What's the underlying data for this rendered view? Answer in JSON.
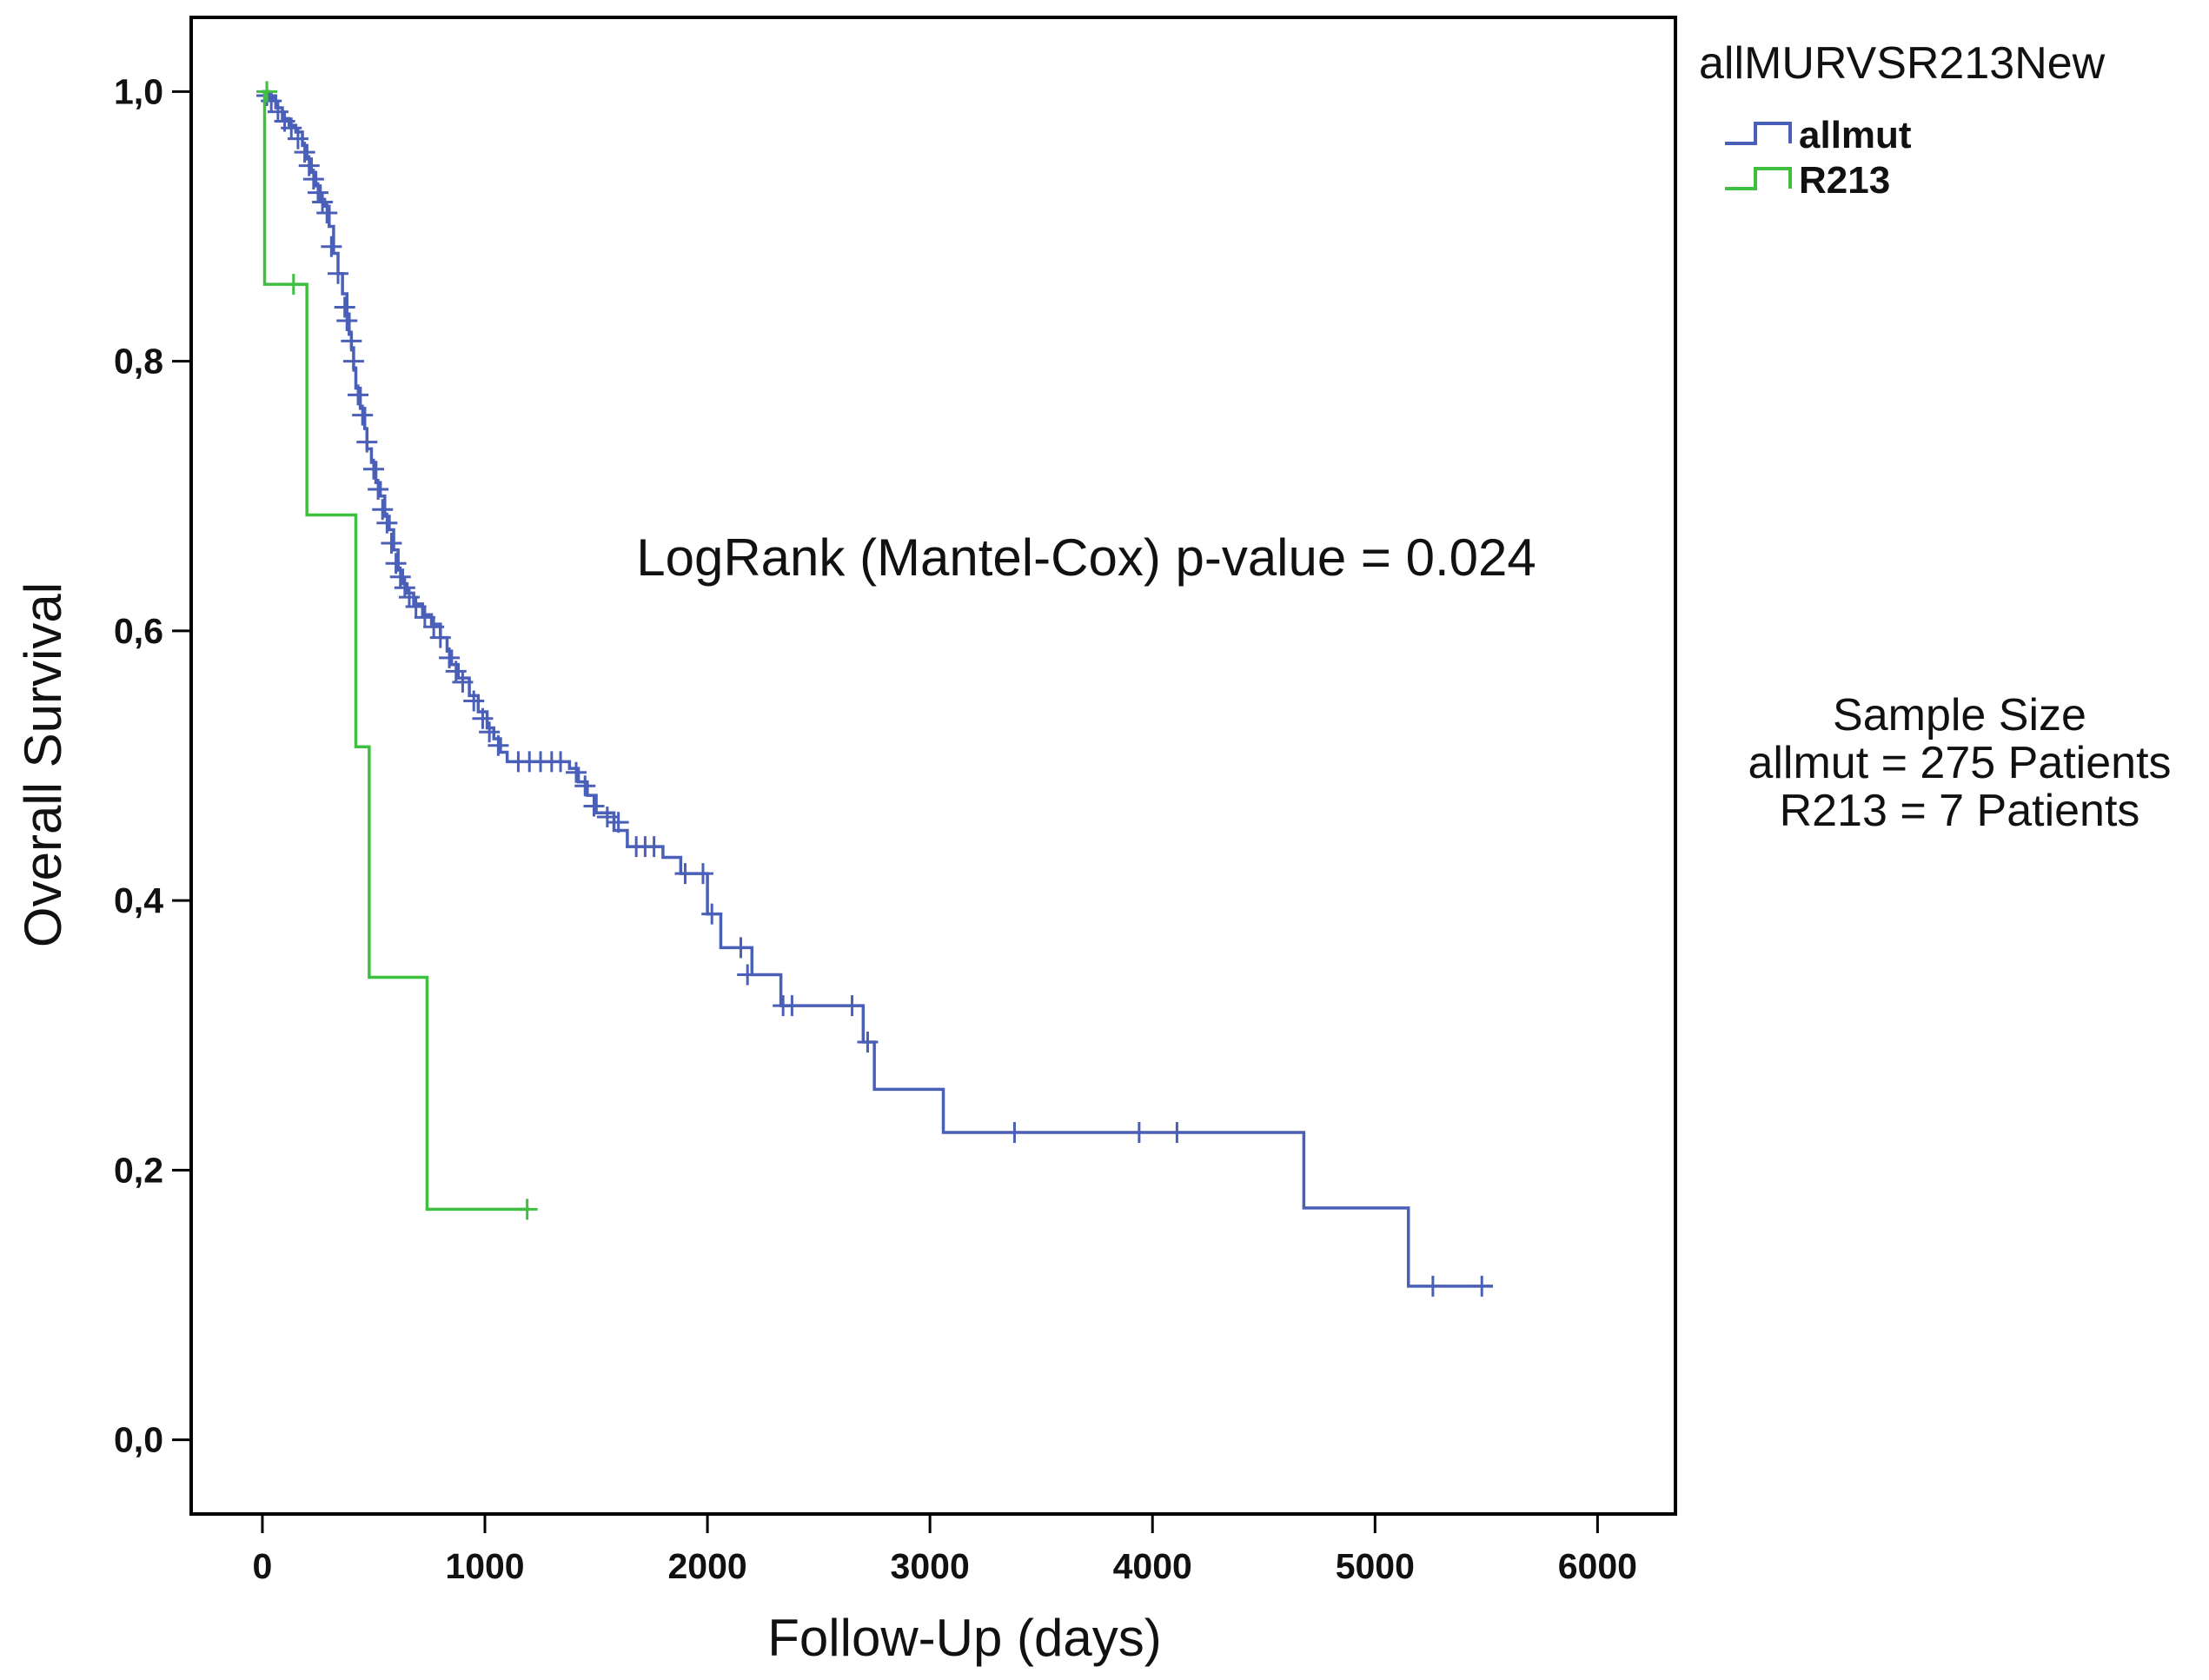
{
  "chart_data": {
    "type": "line",
    "subtype": "kaplan-meier",
    "title": "",
    "xlabel": "Follow-Up (days)",
    "ylabel": "Overall Survival",
    "xlim": [
      -320,
      6350
    ],
    "ylim": [
      -0.055,
      1.055
    ],
    "x_ticks": [
      0,
      1000,
      2000,
      3000,
      4000,
      5000,
      6000
    ],
    "x_tick_labels": [
      "0",
      "1000",
      "2000",
      "3000",
      "4000",
      "5000",
      "6000"
    ],
    "y_ticks": [
      0,
      0.2,
      0.4,
      0.6,
      0.8,
      1.0
    ],
    "y_tick_labels": [
      "0,0",
      "0,2",
      "0,4",
      "0,6",
      "0,8",
      "1,0"
    ],
    "grid": false,
    "legend": {
      "title": "allMURVSR213New",
      "placement": "outside-top-right",
      "entries": [
        {
          "label": "allmut",
          "color": "#4a5fb8"
        },
        {
          "label": "R213",
          "color": "#3fbf3f"
        }
      ]
    },
    "annotations": [
      {
        "text": "LogRank (Mantel-Cox) p-value = 0.024"
      }
    ],
    "side_note": {
      "lines": [
        "Sample Size",
        "allmut = 275 Patients",
        "R213 = 7 Patients"
      ]
    },
    "series": [
      {
        "name": "allmut",
        "color": "#4a5fb8",
        "steps": [
          [
            0,
            1.0
          ],
          [
            30,
            0.995
          ],
          [
            60,
            0.988
          ],
          [
            90,
            0.98
          ],
          [
            120,
            0.975
          ],
          [
            150,
            0.97
          ],
          [
            180,
            0.96
          ],
          [
            200,
            0.95
          ],
          [
            220,
            0.94
          ],
          [
            240,
            0.93
          ],
          [
            260,
            0.92
          ],
          [
            280,
            0.915
          ],
          [
            300,
            0.9
          ],
          [
            320,
            0.88
          ],
          [
            340,
            0.865
          ],
          [
            360,
            0.85
          ],
          [
            380,
            0.835
          ],
          [
            390,
            0.82
          ],
          [
            400,
            0.81
          ],
          [
            410,
            0.795
          ],
          [
            420,
            0.78
          ],
          [
            440,
            0.765
          ],
          [
            460,
            0.75
          ],
          [
            470,
            0.735
          ],
          [
            490,
            0.725
          ],
          [
            510,
            0.71
          ],
          [
            530,
            0.7
          ],
          [
            550,
            0.685
          ],
          [
            570,
            0.675
          ],
          [
            590,
            0.66
          ],
          [
            610,
            0.645
          ],
          [
            630,
            0.635
          ],
          [
            650,
            0.628
          ],
          [
            680,
            0.62
          ],
          [
            720,
            0.612
          ],
          [
            760,
            0.605
          ],
          [
            800,
            0.595
          ],
          [
            830,
            0.585
          ],
          [
            850,
            0.575
          ],
          [
            880,
            0.565
          ],
          [
            930,
            0.552
          ],
          [
            970,
            0.54
          ],
          [
            1010,
            0.528
          ],
          [
            1040,
            0.52
          ],
          [
            1070,
            0.51
          ],
          [
            1100,
            0.503
          ],
          [
            1380,
            0.498
          ],
          [
            1420,
            0.488
          ],
          [
            1460,
            0.478
          ],
          [
            1500,
            0.465
          ],
          [
            1580,
            0.452
          ],
          [
            1640,
            0.44
          ],
          [
            1800,
            0.432
          ],
          [
            1880,
            0.42
          ],
          [
            2000,
            0.39
          ],
          [
            2060,
            0.365
          ],
          [
            2200,
            0.345
          ],
          [
            2330,
            0.322
          ],
          [
            2700,
            0.295
          ],
          [
            2750,
            0.26
          ],
          [
            3060,
            0.228
          ],
          [
            4680,
            0.172
          ],
          [
            5150,
            0.114
          ],
          [
            5530,
            0.114
          ]
        ],
        "censored": [
          [
            20,
            0.997
          ],
          [
            40,
            0.993
          ],
          [
            70,
            0.985
          ],
          [
            100,
            0.978
          ],
          [
            130,
            0.973
          ],
          [
            160,
            0.965
          ],
          [
            190,
            0.955
          ],
          [
            210,
            0.945
          ],
          [
            230,
            0.935
          ],
          [
            250,
            0.925
          ],
          [
            270,
            0.918
          ],
          [
            290,
            0.91
          ],
          [
            310,
            0.885
          ],
          [
            340,
            0.865
          ],
          [
            370,
            0.84
          ],
          [
            380,
            0.83
          ],
          [
            400,
            0.815
          ],
          [
            410,
            0.8
          ],
          [
            430,
            0.775
          ],
          [
            450,
            0.76
          ],
          [
            470,
            0.74
          ],
          [
            500,
            0.72
          ],
          [
            520,
            0.705
          ],
          [
            540,
            0.69
          ],
          [
            560,
            0.68
          ],
          [
            580,
            0.665
          ],
          [
            600,
            0.65
          ],
          [
            620,
            0.64
          ],
          [
            640,
            0.632
          ],
          [
            660,
            0.625
          ],
          [
            690,
            0.618
          ],
          [
            730,
            0.61
          ],
          [
            770,
            0.603
          ],
          [
            800,
            0.595
          ],
          [
            840,
            0.58
          ],
          [
            870,
            0.57
          ],
          [
            900,
            0.562
          ],
          [
            950,
            0.548
          ],
          [
            990,
            0.535
          ],
          [
            1020,
            0.525
          ],
          [
            1060,
            0.515
          ],
          [
            1150,
            0.503
          ],
          [
            1200,
            0.503
          ],
          [
            1250,
            0.503
          ],
          [
            1300,
            0.503
          ],
          [
            1340,
            0.503
          ],
          [
            1410,
            0.495
          ],
          [
            1450,
            0.485
          ],
          [
            1490,
            0.47
          ],
          [
            1550,
            0.462
          ],
          [
            1600,
            0.458
          ],
          [
            1680,
            0.44
          ],
          [
            1720,
            0.44
          ],
          [
            1760,
            0.44
          ],
          [
            1900,
            0.42
          ],
          [
            1980,
            0.42
          ],
          [
            2020,
            0.39
          ],
          [
            2150,
            0.365
          ],
          [
            2180,
            0.345
          ],
          [
            2340,
            0.322
          ],
          [
            2380,
            0.322
          ],
          [
            2650,
            0.322
          ],
          [
            2720,
            0.295
          ],
          [
            3380,
            0.228
          ],
          [
            3940,
            0.228
          ],
          [
            4110,
            0.228
          ],
          [
            5260,
            0.114
          ],
          [
            5480,
            0.114
          ]
        ]
      },
      {
        "name": "R213",
        "color": "#3fbf3f",
        "steps": [
          [
            0,
            1.0
          ],
          [
            10,
            0.857
          ],
          [
            200,
            0.686
          ],
          [
            420,
            0.514
          ],
          [
            480,
            0.343
          ],
          [
            740,
            0.171
          ],
          [
            1200,
            0.171
          ]
        ],
        "censored": [
          [
            20,
            1.0
          ],
          [
            140,
            0.857
          ],
          [
            1190,
            0.171
          ]
        ]
      }
    ]
  }
}
